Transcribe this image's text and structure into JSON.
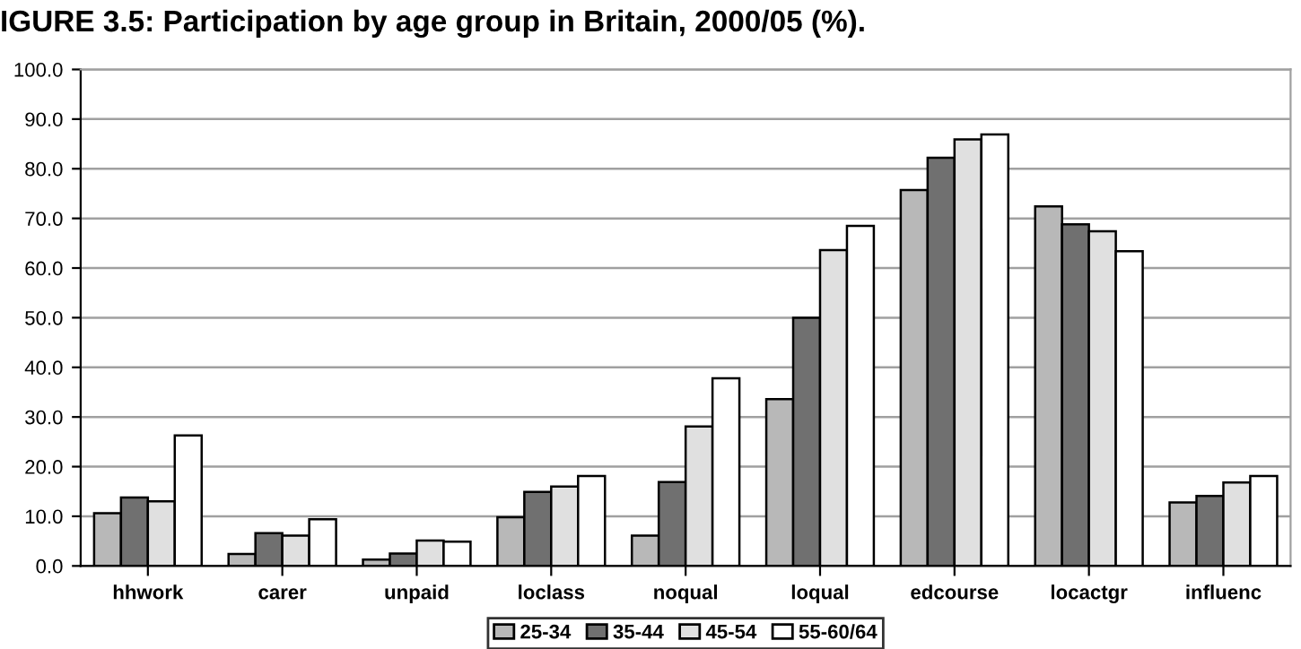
{
  "chart_data": {
    "type": "bar",
    "title": "IGURE 3.5: Participation by age group in Britain, 2000/05 (%).",
    "categories": [
      "hhwork",
      "carer",
      "unpaid",
      "loclass",
      "noqual",
      "loqual",
      "edcourse",
      "locactgr",
      "influenc"
    ],
    "series": [
      {
        "name": "25-34",
        "color": "#b8b8b8",
        "values": [
          10.6,
          2.4,
          1.3,
          9.8,
          6.1,
          33.6,
          75.7,
          72.4,
          12.8
        ]
      },
      {
        "name": "35-44",
        "color": "#707070",
        "values": [
          13.8,
          6.6,
          2.5,
          14.9,
          16.9,
          50.0,
          82.2,
          68.8,
          14.1
        ]
      },
      {
        "name": "45-54",
        "color": "#e0e0e0",
        "values": [
          13.0,
          6.1,
          5.1,
          16.0,
          28.1,
          63.6,
          85.9,
          67.4,
          16.8
        ]
      },
      {
        "name": "55-60/64",
        "color": "#ffffff",
        "values": [
          26.3,
          9.4,
          4.9,
          18.1,
          37.8,
          68.5,
          86.9,
          63.4,
          18.1
        ]
      }
    ],
    "ylim": [
      0,
      100
    ],
    "yticks": [
      {
        "value": 0,
        "label": "0.0"
      },
      {
        "value": 10,
        "label": "10.0"
      },
      {
        "value": 20,
        "label": "20.0"
      },
      {
        "value": 30,
        "label": "30.0"
      },
      {
        "value": 40,
        "label": "40.0"
      },
      {
        "value": 50,
        "label": "50.0"
      },
      {
        "value": 60,
        "label": "60.0"
      },
      {
        "value": 70,
        "label": "70.0"
      },
      {
        "value": 80,
        "label": "80.0"
      },
      {
        "value": 90,
        "label": "90.0"
      },
      {
        "value": 100,
        "label": "100.0"
      }
    ],
    "grid": "y",
    "legend": "bottom"
  }
}
